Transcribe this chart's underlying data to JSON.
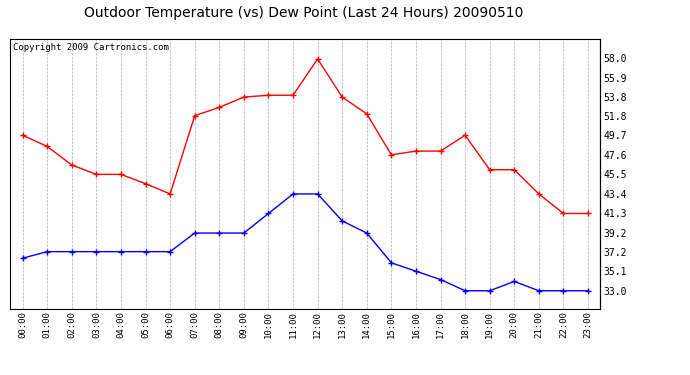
{
  "title": "Outdoor Temperature (vs) Dew Point (Last 24 Hours) 20090510",
  "copyright": "Copyright 2009 Cartronics.com",
  "hours": [
    "00:00",
    "01:00",
    "02:00",
    "03:00",
    "04:00",
    "05:00",
    "06:00",
    "07:00",
    "08:00",
    "09:00",
    "10:00",
    "11:00",
    "12:00",
    "13:00",
    "14:00",
    "15:00",
    "16:00",
    "17:00",
    "18:00",
    "19:00",
    "20:00",
    "21:00",
    "22:00",
    "23:00"
  ],
  "temp": [
    49.7,
    48.5,
    46.5,
    45.5,
    45.5,
    44.5,
    43.4,
    51.8,
    52.7,
    53.8,
    54.0,
    54.0,
    57.9,
    53.8,
    52.0,
    47.6,
    48.0,
    48.0,
    49.7,
    46.0,
    46.0,
    43.4,
    41.3,
    41.3
  ],
  "dew": [
    36.5,
    37.2,
    37.2,
    37.2,
    37.2,
    37.2,
    37.2,
    39.2,
    39.2,
    39.2,
    41.3,
    43.4,
    43.4,
    40.5,
    39.2,
    36.0,
    35.1,
    34.2,
    33.0,
    33.0,
    34.0,
    33.0,
    33.0,
    33.0
  ],
  "temp_color": "#ff0000",
  "dew_color": "#0000ff",
  "bg_color": "#ffffff",
  "plot_bg": "#ffffff",
  "grid_color": "#b0b0b0",
  "ylim": [
    31.0,
    60.0
  ],
  "yticks": [
    33.0,
    35.1,
    37.2,
    39.2,
    41.3,
    43.4,
    45.5,
    47.6,
    49.7,
    51.8,
    53.8,
    55.9,
    58.0
  ],
  "title_fontsize": 10,
  "copyright_fontsize": 6.5
}
